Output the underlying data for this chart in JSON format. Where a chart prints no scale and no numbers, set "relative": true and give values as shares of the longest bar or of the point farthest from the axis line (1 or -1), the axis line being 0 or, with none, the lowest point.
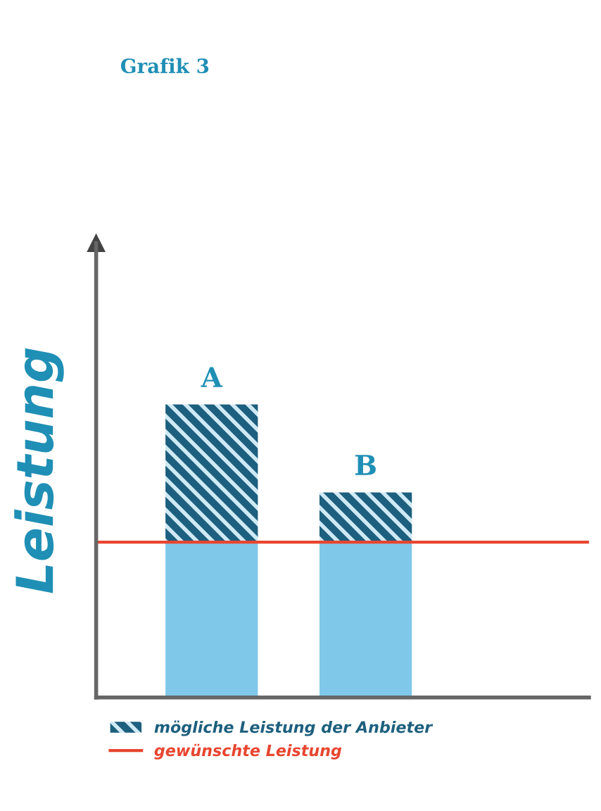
{
  "chart_data": {
    "type": "bar",
    "title": "Grafik 3",
    "ylabel": "Leistung",
    "relative": true,
    "stacked": true,
    "categories": [
      "A",
      "B"
    ],
    "series": [
      {
        "color": "#7fc8ea",
        "values": [
          0.53,
          0.53
        ]
      },
      {
        "name": "mögliche Leistung der Anbieter",
        "color": "#1d5f7e",
        "values": [
          0.47,
          0.17
        ]
      }
    ],
    "ref_lines": [
      {
        "axis": "y",
        "value": 0.53,
        "label": "gewünschte Leistung",
        "color": "#e8452f"
      }
    ],
    "legend": "bottom"
  }
}
